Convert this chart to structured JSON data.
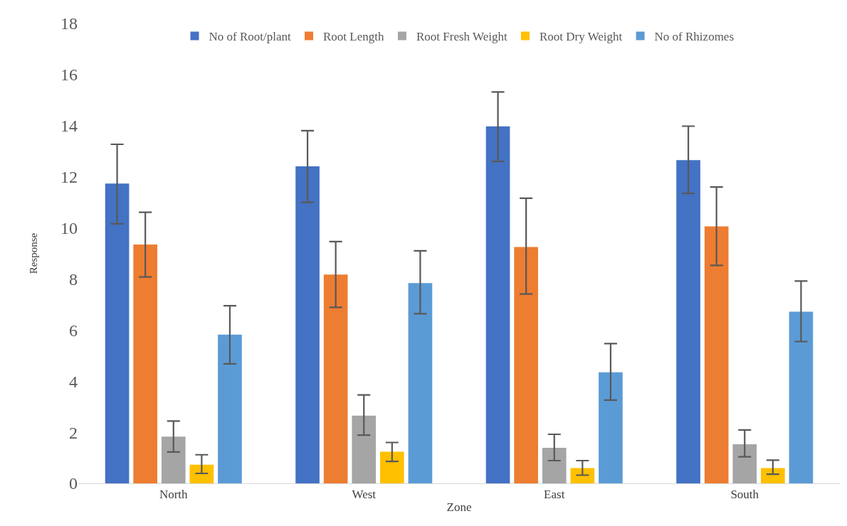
{
  "chart_data": {
    "type": "bar",
    "xlabel": "Zone",
    "ylabel": "Response",
    "categories": [
      "North",
      "West",
      "East",
      "South"
    ],
    "series": [
      {
        "name": "No of Root/plant",
        "color": "#4472c4",
        "values": [
          11.73,
          12.41,
          13.97,
          12.65
        ],
        "errors": [
          [
            10.16,
            13.27
          ],
          [
            11.0,
            13.8
          ],
          [
            12.6,
            15.32
          ],
          [
            11.35,
            13.98
          ]
        ]
      },
      {
        "name": "Root Length",
        "color": "#ed7d31",
        "values": [
          9.35,
          8.17,
          9.25,
          10.06
        ],
        "errors": [
          [
            8.08,
            10.61
          ],
          [
            6.89,
            9.46
          ],
          [
            7.41,
            11.16
          ],
          [
            8.53,
            11.6
          ]
        ]
      },
      {
        "name": "Root Fresh Weight",
        "color": "#a5a5a5",
        "values": [
          1.83,
          2.65,
          1.39,
          1.53
        ],
        "errors": [
          [
            1.23,
            2.44
          ],
          [
            1.89,
            3.46
          ],
          [
            0.89,
            1.92
          ],
          [
            1.04,
            2.09
          ]
        ]
      },
      {
        "name": "Root Dry Weight",
        "color": "#ffc000",
        "values": [
          0.73,
          1.24,
          0.6,
          0.6
        ],
        "errors": [
          [
            0.39,
            1.12
          ],
          [
            0.86,
            1.6
          ],
          [
            0.32,
            0.89
          ],
          [
            0.36,
            0.91
          ]
        ]
      },
      {
        "name": "No of Rhizomes",
        "color": "#5b9bd5",
        "values": [
          5.82,
          7.84,
          4.35,
          6.72
        ],
        "errors": [
          [
            4.68,
            6.95
          ],
          [
            6.64,
            9.1
          ],
          [
            3.26,
            5.47
          ],
          [
            5.55,
            7.92
          ]
        ]
      }
    ],
    "ylim": [
      0,
      18
    ],
    "yticks": [
      0,
      2,
      4,
      6,
      8,
      10,
      12,
      14,
      16,
      18
    ],
    "grid": false,
    "legend": "top"
  }
}
